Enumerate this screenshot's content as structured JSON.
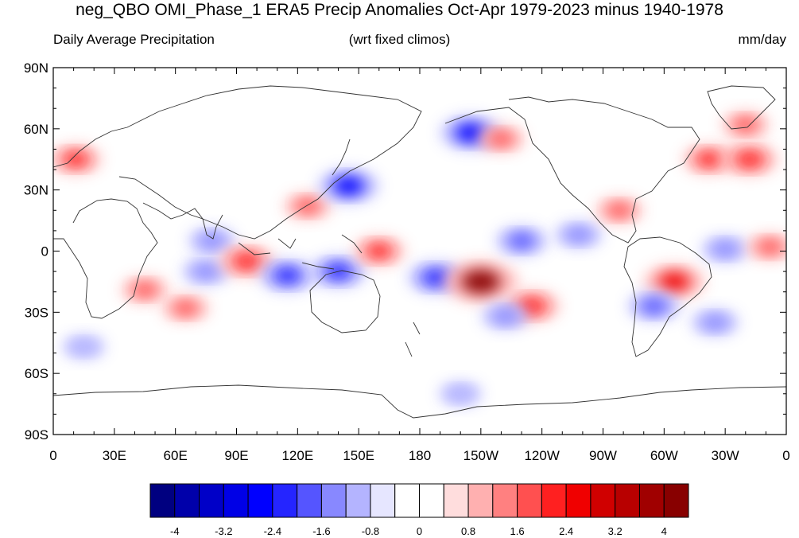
{
  "title": "neg_QBO OMI_Phase_1 ERA5 Precip Anomalies Oct-Apr 1979-2023 minus 1940-1978",
  "subtitle_left": "Daily Average Precipitation",
  "subtitle_center": "(wrt fixed climos)",
  "subtitle_right": "mm/day",
  "map": {
    "projection": "cylindrical-equidistant",
    "lon_range": [
      0,
      360
    ],
    "lat_range": [
      -90,
      90
    ],
    "lon_ticks": [
      "0",
      "30E",
      "60E",
      "90E",
      "120E",
      "150E",
      "180",
      "150W",
      "120W",
      "90W",
      "60W",
      "30W",
      "0"
    ],
    "lat_ticks": [
      "90N",
      "60N",
      "30N",
      "0",
      "30S",
      "60S",
      "90S"
    ],
    "anomaly_regions": [
      {
        "lon": 11,
        "lat": 45,
        "value": 2.0
      },
      {
        "lon": 45,
        "lat": -19,
        "value": 1.6
      },
      {
        "lon": 65,
        "lat": -28,
        "value": 1.6
      },
      {
        "lon": 75,
        "lat": -10,
        "value": -1.6
      },
      {
        "lon": 78,
        "lat": 5,
        "value": -1.6
      },
      {
        "lon": 95,
        "lat": -5,
        "value": 2.4
      },
      {
        "lon": 115,
        "lat": -12,
        "value": -2.4
      },
      {
        "lon": 125,
        "lat": 22,
        "value": 1.6
      },
      {
        "lon": 145,
        "lat": 32,
        "value": -2.8
      },
      {
        "lon": 140,
        "lat": -10,
        "value": -2.4
      },
      {
        "lon": 160,
        "lat": 0,
        "value": 2.0
      },
      {
        "lon": 205,
        "lat": 58,
        "value": -2.8
      },
      {
        "lon": 220,
        "lat": 55,
        "value": 1.6
      },
      {
        "lon": 188,
        "lat": -13,
        "value": -2.4
      },
      {
        "lon": 210,
        "lat": -15,
        "value": 4.0
      },
      {
        "lon": 235,
        "lat": -27,
        "value": 2.4
      },
      {
        "lon": 222,
        "lat": -32,
        "value": -1.6
      },
      {
        "lon": 230,
        "lat": 5,
        "value": -2.0
      },
      {
        "lon": 258,
        "lat": 8,
        "value": -1.6
      },
      {
        "lon": 278,
        "lat": 20,
        "value": 1.6
      },
      {
        "lon": 305,
        "lat": -15,
        "value": 2.8
      },
      {
        "lon": 295,
        "lat": -27,
        "value": -2.0
      },
      {
        "lon": 325,
        "lat": -35,
        "value": -1.6
      },
      {
        "lon": 322,
        "lat": 45,
        "value": 2.0
      },
      {
        "lon": 342,
        "lat": 45,
        "value": 2.4
      },
      {
        "lon": 330,
        "lat": 1,
        "value": -1.6
      },
      {
        "lon": 352,
        "lat": 2,
        "value": 1.6
      },
      {
        "lon": 340,
        "lat": 62,
        "value": 1.6
      },
      {
        "lon": 200,
        "lat": -70,
        "value": -1.2
      },
      {
        "lon": 15,
        "lat": -47,
        "value": -1.2
      }
    ]
  },
  "colorbar": {
    "colors": [
      "#000080",
      "#0000aa",
      "#0000c8",
      "#0000e6",
      "#0000ff",
      "#2525ff",
      "#5555ff",
      "#8888ff",
      "#b4b4ff",
      "#e6e6ff",
      "#ffffff",
      "#ffffff",
      "#ffdddd",
      "#ffb0b0",
      "#ff8080",
      "#ff5050",
      "#ff2020",
      "#f00000",
      "#d00000",
      "#b80000",
      "#a00000",
      "#880000"
    ],
    "labels": [
      "-4",
      "-3.2",
      "-2.4",
      "-1.6",
      "-0.8",
      "0",
      "0.8",
      "1.6",
      "2.4",
      "3.2",
      "4"
    ]
  }
}
